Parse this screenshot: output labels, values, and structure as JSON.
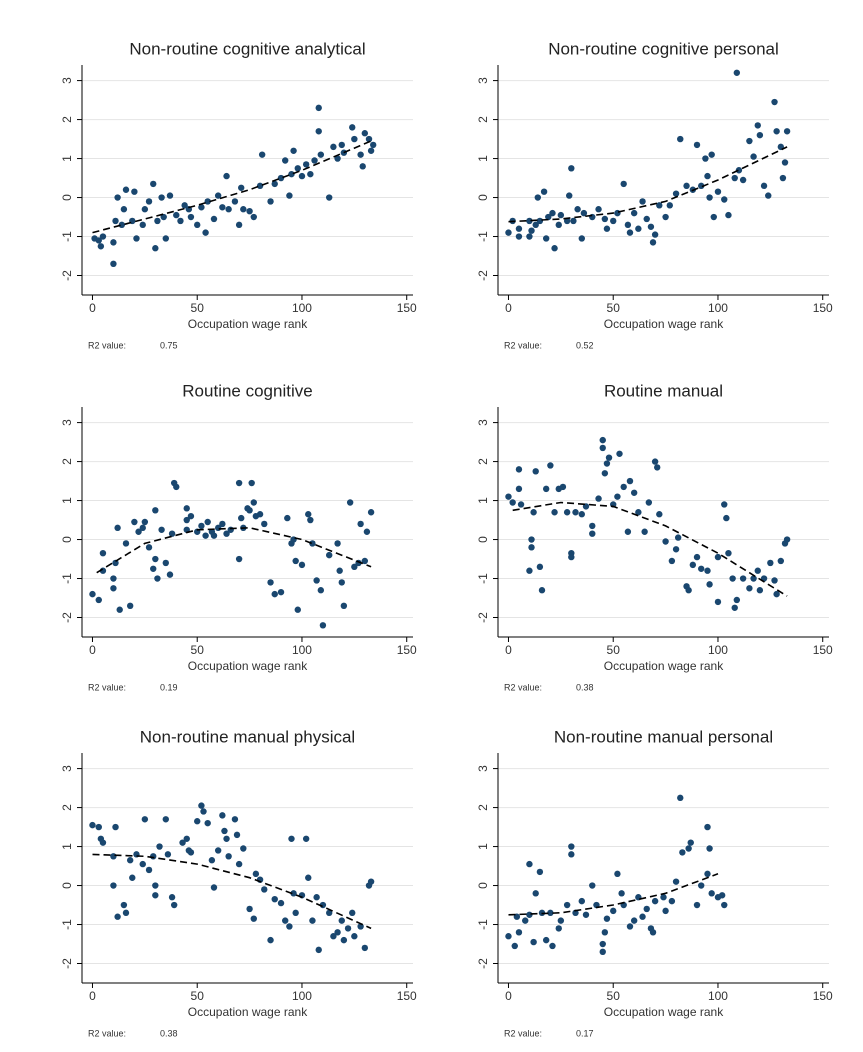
{
  "chart_data": [
    {
      "type": "scatter",
      "title": "Non-routine cognitive analytical",
      "x_label": "Occupation wage rank",
      "r2_label": "R2 value:",
      "r2": 0.75,
      "color": "#1a476f",
      "x": [
        1,
        3,
        4,
        5,
        10,
        10,
        11,
        12,
        14,
        15,
        16,
        19,
        20,
        21,
        24,
        25,
        27,
        29,
        30,
        31,
        33,
        34,
        35,
        37,
        40,
        42,
        44,
        46,
        47,
        50,
        52,
        54,
        55,
        58,
        60,
        62,
        64,
        65,
        68,
        70,
        71,
        72,
        75,
        77,
        80,
        81,
        85,
        87,
        90,
        92,
        94,
        95,
        96,
        98,
        100,
        102,
        104,
        106,
        108,
        108,
        109,
        113,
        115,
        117,
        119,
        120,
        124,
        125,
        128,
        129,
        130,
        132,
        133,
        134
      ],
      "values": [
        -1.05,
        -1.1,
        -1.25,
        -1.0,
        -1.7,
        -1.15,
        -0.6,
        0.0,
        -0.7,
        -0.3,
        0.2,
        -0.6,
        0.15,
        -1.05,
        -0.7,
        -0.3,
        -0.1,
        0.35,
        -1.3,
        -0.6,
        0.0,
        -0.5,
        -1.05,
        0.05,
        -0.45,
        -0.6,
        -0.2,
        -0.3,
        -0.5,
        -0.7,
        -0.25,
        -0.9,
        -0.1,
        -0.55,
        0.05,
        -0.25,
        0.55,
        -0.3,
        -0.1,
        -0.7,
        0.25,
        -0.3,
        -0.35,
        -0.5,
        0.3,
        1.1,
        -0.1,
        0.35,
        0.5,
        0.95,
        0.05,
        0.6,
        1.2,
        0.75,
        0.55,
        0.85,
        0.6,
        0.95,
        2.3,
        1.7,
        1.1,
        0.0,
        1.3,
        1.0,
        1.35,
        1.15,
        1.8,
        1.5,
        1.1,
        0.8,
        1.65,
        1.5,
        1.2,
        1.35
      ],
      "fit": {
        "x": [
          0,
          25,
          50,
          75,
          100,
          133
        ],
        "values": [
          -0.9,
          -0.55,
          -0.2,
          0.2,
          0.7,
          1.45
        ],
        "color": "#000000",
        "style": "dashed"
      },
      "xlim": [
        -5,
        153
      ],
      "ylim": [
        -2.5,
        3.4
      ],
      "xticks": [
        0,
        50,
        100,
        150
      ],
      "yticks": [
        -2,
        -1,
        0,
        1,
        2,
        3
      ],
      "grid": true
    },
    {
      "type": "scatter",
      "title": "Non-routine cognitive personal",
      "x_label": "Occupation wage rank",
      "r2_label": "R2 value:",
      "r2": 0.52,
      "color": "#1a476f",
      "x": [
        0,
        2,
        5,
        5,
        10,
        10,
        11,
        13,
        14,
        15,
        17,
        18,
        19,
        21,
        22,
        24,
        25,
        28,
        29,
        30,
        31,
        33,
        35,
        36,
        40,
        43,
        46,
        47,
        50,
        52,
        55,
        57,
        58,
        60,
        62,
        64,
        66,
        68,
        69,
        70,
        72,
        75,
        77,
        80,
        82,
        85,
        88,
        90,
        92,
        94,
        95,
        96,
        97,
        98,
        100,
        103,
        105,
        108,
        109,
        110,
        112,
        115,
        117,
        119,
        120,
        122,
        124,
        127,
        128,
        130,
        131,
        132,
        133
      ],
      "values": [
        -0.9,
        -0.6,
        -1.0,
        -0.8,
        -0.6,
        -1.0,
        -0.85,
        -0.7,
        0.0,
        -0.6,
        0.15,
        -1.05,
        -0.5,
        -0.4,
        -1.3,
        -0.7,
        -0.45,
        -0.6,
        0.05,
        0.75,
        -0.6,
        -0.3,
        -1.05,
        -0.4,
        -0.5,
        -0.3,
        -0.55,
        -0.8,
        -0.6,
        -0.4,
        0.35,
        -0.7,
        -0.9,
        -0.4,
        -0.8,
        -0.1,
        -0.55,
        -0.75,
        -1.15,
        -0.95,
        -0.2,
        -0.5,
        -0.2,
        0.1,
        1.5,
        0.3,
        0.2,
        1.35,
        0.3,
        1.0,
        0.55,
        0.0,
        1.1,
        -0.5,
        0.15,
        -0.05,
        -0.45,
        0.5,
        3.2,
        0.7,
        0.45,
        1.45,
        1.05,
        1.85,
        1.6,
        0.3,
        0.05,
        2.45,
        1.7,
        1.3,
        0.5,
        0.9,
        1.7
      ],
      "fit": {
        "x": [
          0,
          25,
          50,
          75,
          100,
          133
        ],
        "values": [
          -0.62,
          -0.55,
          -0.4,
          -0.1,
          0.45,
          1.3
        ],
        "color": "#000000",
        "style": "dashed"
      },
      "xlim": [
        -5,
        153
      ],
      "ylim": [
        -2.5,
        3.4
      ],
      "xticks": [
        0,
        50,
        100,
        150
      ],
      "yticks": [
        -2,
        -1,
        0,
        1,
        2,
        3
      ],
      "grid": true
    },
    {
      "type": "scatter",
      "title": "Routine cognitive",
      "x_label": "Occupation wage rank",
      "r2_label": "R2 value:",
      "r2": 0.19,
      "color": "#1a476f",
      "x": [
        0,
        3,
        5,
        5,
        10,
        10,
        11,
        12,
        13,
        16,
        18,
        20,
        22,
        24,
        25,
        27,
        29,
        30,
        30,
        31,
        33,
        35,
        37,
        38,
        39,
        40,
        45,
        45,
        45,
        47,
        50,
        52,
        54,
        55,
        57,
        58,
        60,
        62,
        64,
        66,
        70,
        70,
        71,
        72,
        74,
        75,
        76,
        77,
        78,
        80,
        82,
        85,
        87,
        90,
        93,
        95,
        96,
        97,
        98,
        100,
        103,
        104,
        105,
        107,
        109,
        110,
        113,
        117,
        118,
        119,
        120,
        123,
        125,
        127,
        128,
        130,
        131,
        133
      ],
      "values": [
        -1.4,
        -1.55,
        -0.35,
        -0.8,
        -1.0,
        -1.25,
        -0.6,
        0.3,
        -1.8,
        -0.1,
        -1.7,
        0.45,
        0.2,
        0.3,
        0.45,
        -0.2,
        -0.75,
        0.75,
        -0.5,
        -1.0,
        0.25,
        -0.6,
        -0.9,
        0.15,
        1.45,
        1.35,
        0.5,
        0.25,
        0.8,
        0.6,
        0.2,
        0.35,
        0.1,
        0.45,
        0.2,
        0.1,
        0.3,
        0.4,
        0.15,
        0.25,
        1.45,
        -0.5,
        0.55,
        0.3,
        0.8,
        0.75,
        1.45,
        0.95,
        0.6,
        0.65,
        0.4,
        -1.1,
        -1.4,
        -1.35,
        0.55,
        -0.1,
        0.0,
        -0.55,
        -1.8,
        -0.65,
        0.65,
        0.5,
        -0.1,
        -1.05,
        -1.3,
        -2.2,
        -0.4,
        -0.1,
        -0.8,
        -1.1,
        -1.7,
        0.95,
        -0.7,
        -0.6,
        0.4,
        -0.55,
        0.2,
        0.7
      ],
      "fit": {
        "x": [
          2,
          25,
          50,
          75,
          100,
          133
        ],
        "values": [
          -0.85,
          -0.1,
          0.25,
          0.3,
          0.0,
          -0.7
        ],
        "color": "#000000",
        "style": "dashed"
      },
      "xlim": [
        -5,
        153
      ],
      "ylim": [
        -2.5,
        3.4
      ],
      "xticks": [
        0,
        50,
        100,
        150
      ],
      "yticks": [
        -2,
        -1,
        0,
        1,
        2,
        3
      ],
      "grid": true
    },
    {
      "type": "scatter",
      "title": "Routine manual",
      "x_label": "Occupation wage rank",
      "r2_label": "R2 value:",
      "r2": 0.38,
      "color": "#1a476f",
      "x": [
        0,
        2,
        5,
        5,
        6,
        10,
        11,
        11,
        12,
        13,
        15,
        16,
        18,
        20,
        22,
        24,
        26,
        28,
        30,
        30,
        32,
        35,
        37,
        40,
        40,
        43,
        45,
        45,
        46,
        47,
        48,
        50,
        52,
        53,
        55,
        57,
        58,
        60,
        62,
        65,
        67,
        70,
        71,
        72,
        75,
        78,
        80,
        81,
        85,
        86,
        88,
        90,
        92,
        95,
        96,
        100,
        100,
        103,
        104,
        105,
        107,
        108,
        109,
        112,
        115,
        117,
        119,
        120,
        122,
        125,
        127,
        128,
        130,
        132,
        133
      ],
      "values": [
        1.1,
        0.95,
        1.8,
        1.3,
        0.9,
        -0.8,
        0.0,
        -0.2,
        0.7,
        1.75,
        -0.7,
        -1.3,
        1.3,
        1.9,
        0.7,
        1.3,
        1.35,
        0.7,
        -0.35,
        -0.45,
        0.7,
        0.65,
        0.85,
        0.15,
        0.35,
        1.05,
        2.55,
        2.35,
        1.7,
        1.95,
        2.1,
        0.9,
        1.1,
        2.2,
        1.35,
        0.2,
        1.5,
        1.2,
        0.7,
        0.2,
        0.95,
        2.0,
        1.85,
        0.65,
        -0.05,
        -0.55,
        -0.25,
        0.05,
        -1.2,
        -1.3,
        -0.65,
        -0.45,
        -0.75,
        -0.8,
        -1.15,
        -1.6,
        -0.45,
        0.9,
        0.55,
        -0.35,
        -1.0,
        -1.75,
        -1.55,
        -1.0,
        -1.25,
        -1.0,
        -0.8,
        -1.3,
        -1.0,
        -0.6,
        -1.05,
        -1.4,
        -0.55,
        -0.1,
        0.0
      ],
      "fit": {
        "x": [
          2,
          25,
          50,
          75,
          100,
          133
        ],
        "values": [
          0.75,
          0.95,
          0.85,
          0.35,
          -0.35,
          -1.45
        ],
        "color": "#000000",
        "style": "dashed"
      },
      "xlim": [
        -5,
        153
      ],
      "ylim": [
        -2.5,
        3.4
      ],
      "xticks": [
        0,
        50,
        100,
        150
      ],
      "yticks": [
        -2,
        -1,
        0,
        1,
        2,
        3
      ],
      "grid": true
    },
    {
      "type": "scatter",
      "title": "Non-routine manual physical",
      "x_label": "Occupation wage rank",
      "r2_label": "R2 value:",
      "r2": 0.38,
      "color": "#1a476f",
      "x": [
        0,
        3,
        4,
        5,
        10,
        10,
        11,
        12,
        15,
        16,
        18,
        19,
        21,
        24,
        25,
        27,
        29,
        30,
        30,
        32,
        35,
        36,
        38,
        39,
        43,
        45,
        46,
        47,
        50,
        52,
        53,
        55,
        57,
        58,
        60,
        62,
        63,
        64,
        65,
        68,
        69,
        70,
        72,
        75,
        77,
        78,
        80,
        82,
        85,
        87,
        90,
        92,
        94,
        95,
        96,
        97,
        100,
        102,
        103,
        105,
        107,
        108,
        110,
        113,
        115,
        117,
        119,
        120,
        122,
        124,
        125,
        128,
        130,
        132,
        133
      ],
      "values": [
        1.55,
        1.5,
        1.2,
        1.1,
        0.75,
        0.0,
        1.5,
        -0.8,
        -0.5,
        -0.7,
        0.65,
        0.2,
        0.8,
        0.55,
        1.7,
        0.4,
        0.75,
        0.0,
        -0.25,
        1.0,
        1.7,
        0.8,
        -0.3,
        -0.5,
        1.1,
        1.2,
        0.9,
        0.85,
        1.65,
        2.05,
        1.9,
        1.6,
        0.65,
        -0.05,
        0.9,
        1.8,
        1.4,
        1.2,
        0.75,
        1.7,
        1.3,
        0.55,
        0.95,
        -0.6,
        -0.85,
        0.3,
        0.15,
        -0.1,
        -1.4,
        -0.35,
        -0.45,
        -0.9,
        -1.05,
        1.2,
        -0.2,
        -0.7,
        -0.25,
        1.2,
        0.2,
        -0.9,
        -0.3,
        -1.65,
        -0.5,
        -0.7,
        -1.3,
        -1.2,
        -0.9,
        -1.4,
        -1.1,
        -0.7,
        -1.3,
        -1.05,
        -1.6,
        0.0,
        0.1
      ],
      "fit": {
        "x": [
          0,
          25,
          50,
          75,
          100,
          133
        ],
        "values": [
          0.8,
          0.75,
          0.55,
          0.2,
          -0.3,
          -1.1
        ],
        "color": "#000000",
        "style": "dashed"
      },
      "xlim": [
        -5,
        153
      ],
      "ylim": [
        -2.5,
        3.4
      ],
      "xticks": [
        0,
        50,
        100,
        150
      ],
      "yticks": [
        -2,
        -1,
        0,
        1,
        2,
        3
      ],
      "grid": true
    },
    {
      "type": "scatter",
      "title": "Non-routine manual personal",
      "x_label": "Occupation wage rank",
      "r2_label": "R2 value:",
      "r2": 0.17,
      "color": "#1a476f",
      "x": [
        0,
        3,
        4,
        5,
        8,
        10,
        10,
        12,
        13,
        15,
        16,
        18,
        20,
        21,
        24,
        25,
        28,
        30,
        30,
        32,
        35,
        37,
        40,
        42,
        45,
        45,
        46,
        47,
        50,
        52,
        54,
        55,
        58,
        60,
        62,
        64,
        66,
        68,
        69,
        70,
        74,
        75,
        78,
        80,
        82,
        83,
        86,
        87,
        90,
        92,
        95,
        95,
        96,
        97,
        100,
        102,
        103
      ],
      "values": [
        -1.3,
        -1.55,
        -0.8,
        -1.2,
        -0.9,
        -0.75,
        0.55,
        -1.45,
        -0.2,
        0.35,
        -0.7,
        -1.4,
        -0.7,
        -1.55,
        -1.1,
        -0.9,
        -0.5,
        1.0,
        0.8,
        -0.7,
        -0.4,
        -0.75,
        0.0,
        -0.5,
        -1.7,
        -1.5,
        -1.2,
        -0.85,
        -0.65,
        0.3,
        -0.2,
        -0.5,
        -1.05,
        -0.9,
        -0.3,
        -0.8,
        -0.6,
        -1.1,
        -1.2,
        -0.4,
        -0.3,
        -0.65,
        -0.4,
        0.1,
        2.25,
        0.85,
        0.95,
        1.1,
        -0.5,
        0.0,
        1.5,
        0.3,
        0.95,
        -0.2,
        -0.3,
        -0.25,
        -0.5
      ],
      "fit": {
        "x": [
          0,
          25,
          50,
          75,
          100
        ],
        "values": [
          -0.75,
          -0.7,
          -0.5,
          -0.2,
          0.3
        ],
        "color": "#000000",
        "style": "dashed"
      },
      "xlim": [
        -5,
        153
      ],
      "ylim": [
        -2.5,
        3.4
      ],
      "xticks": [
        0,
        50,
        100,
        150
      ],
      "yticks": [
        -2,
        -1,
        0,
        1,
        2,
        3
      ],
      "grid": true
    }
  ]
}
